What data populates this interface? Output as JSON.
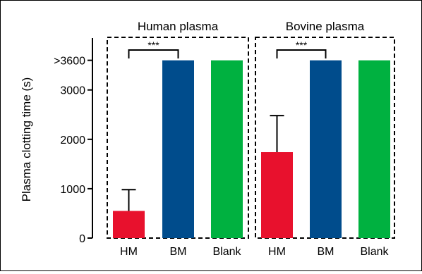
{
  "chart_data": {
    "type": "bar",
    "ylabel": "Plasma clotting time (s)",
    "ylim": [
      0,
      3900
    ],
    "yticks": [
      {
        "value": 0,
        "label": "0"
      },
      {
        "value": 1000,
        "label": "1000"
      },
      {
        "value": 2000,
        "label": "2000"
      },
      {
        "value": 3000,
        "label": "3000"
      },
      {
        "value": 3600,
        "label": ">3600"
      }
    ],
    "groups": [
      {
        "title": "Human plasma",
        "categories": [
          "HM",
          "BM",
          "Blank"
        ],
        "values": [
          550,
          3600,
          3600
        ],
        "errors": [
          430,
          0,
          0
        ],
        "colors": [
          "#E8112D",
          "#004C8C",
          "#00B140"
        ],
        "significance": {
          "from": 0,
          "to": 1,
          "label": "***"
        }
      },
      {
        "title": "Bovine plasma",
        "categories": [
          "HM",
          "BM",
          "Blank"
        ],
        "values": [
          1740,
          3600,
          3600
        ],
        "errors": [
          740,
          0,
          0
        ],
        "colors": [
          "#E8112D",
          "#004C8C",
          "#00B140"
        ],
        "significance": {
          "from": 0,
          "to": 1,
          "label": "***"
        }
      }
    ]
  }
}
